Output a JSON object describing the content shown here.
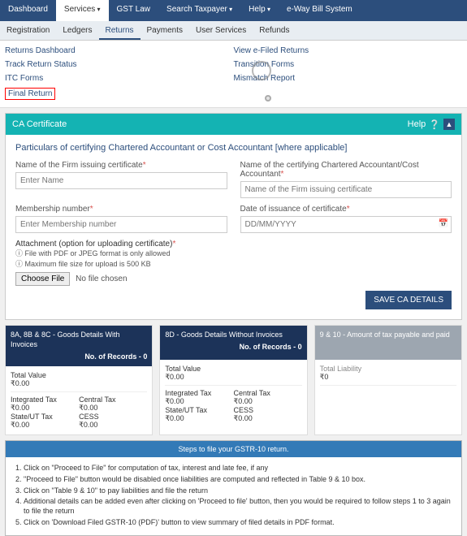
{
  "topnav": {
    "items": [
      "Dashboard",
      "Services",
      "GST Law",
      "Search Taxpayer",
      "Help",
      "e-Way Bill System"
    ],
    "activeIndex": 1,
    "caretIndices": [
      1,
      3,
      4
    ]
  },
  "subnav": {
    "items": [
      "Registration",
      "Ledgers",
      "Returns",
      "Payments",
      "User Services",
      "Refunds"
    ],
    "activeIndex": 2
  },
  "links": {
    "left": [
      "Returns Dashboard",
      "Track Return Status",
      "ITC Forms",
      "Final Return"
    ],
    "right": [
      "View e-Filed Returns",
      "Transition Forms",
      "Mismatch Report"
    ],
    "highlighted": "Final Return"
  },
  "panel": {
    "title": "CA Certificate",
    "help": "Help",
    "section": "Particulars of certifying Chartered Accountant or Cost Accountant [where applicable]",
    "firm_label": "Name of the Firm issuing certificate",
    "firm_placeholder": "Enter Name",
    "ca_label": "Name of the certifying Chartered Accountant/Cost Accountant",
    "ca_placeholder": "Name of the Firm issuing certificate",
    "member_label": "Membership number",
    "member_placeholder": "Enter Membership number",
    "date_label": "Date of issuance of certificate",
    "date_placeholder": "DD/MM/YYYY",
    "attach_label": "Attachment (option for uploading certificate)",
    "hint1": "File with PDF or JPEG format is only allowed",
    "hint2": "Maximum file size for upload is 500 KB",
    "choose": "Choose File",
    "nofile": "No file chosen",
    "save": "SAVE CA DETAILS"
  },
  "cards": [
    {
      "title": "8A, 8B & 8C - Goods Details With Invoices",
      "records": "No. of Records - 0",
      "total_label": "Total Value",
      "total": "₹0.00",
      "rows": [
        [
          "Integrated Tax",
          "Central Tax"
        ],
        [
          "₹0.00",
          "₹0.00"
        ],
        [
          "State/UT Tax",
          "CESS"
        ],
        [
          "₹0.00",
          "₹0.00"
        ]
      ]
    },
    {
      "title": "8D - Goods Details Without Invoices",
      "records": "No. of Records - 0",
      "total_label": "Total Value",
      "total": "₹0.00",
      "rows": [
        [
          "Integrated Tax",
          "Central Tax"
        ],
        [
          "₹0.00",
          "₹0.00"
        ],
        [
          "State/UT Tax",
          "CESS"
        ],
        [
          "₹0.00",
          "₹0.00"
        ]
      ]
    },
    {
      "title": "9 & 10 - Amount of tax payable and paid",
      "grey": true,
      "liab_label": "Total Liability",
      "liab": "₹0"
    }
  ],
  "steps": {
    "title": "Steps to file your GSTR-10 return.",
    "items": [
      "Click on \"Proceed to File\" for computation of tax, interest and late fee, if any",
      "\"Proceed to File\" button would be disabled once liabilities are computed and reflected in Table 9 & 10 box.",
      "Click on \"Table 9 & 10\" to pay liabilities and file the return",
      "Additional details can be added even after clicking on 'Proceed to file' button, then you would be required to follow steps 1 to 3 again to file the return",
      "Click on 'Download Filed GSTR-10 (PDF)' button to view summary of filed details in PDF format."
    ]
  },
  "colors": {
    "topnav": "#2c4e7c",
    "teal": "#14b3b3",
    "darkblue": "#1c3359",
    "grey": "#9da6b0",
    "stepsblue": "#337ab7"
  }
}
